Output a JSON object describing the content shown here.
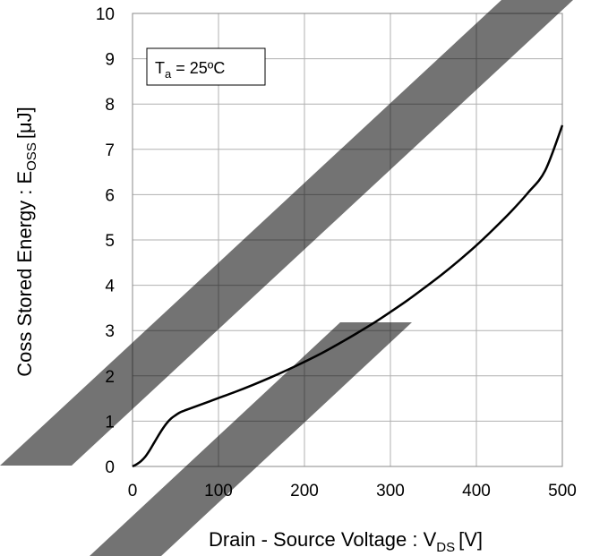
{
  "chart_data": {
    "type": "line",
    "xlabel": {
      "main": "Drain - Source Voltage : V",
      "sub": "DS",
      "unit": "[V]"
    },
    "ylabel": {
      "main": "Coss Stored Energy : E",
      "sub": "OSS",
      "unit": "[μJ]"
    },
    "xlim": [
      0,
      500
    ],
    "ylim": [
      0,
      10
    ],
    "xticks": [
      0,
      100,
      200,
      300,
      400,
      500
    ],
    "yticks": [
      0,
      1,
      2,
      3,
      4,
      5,
      6,
      7,
      8,
      9,
      10
    ],
    "grid": true,
    "annotation": {
      "main": "T",
      "sub": "a",
      "rest": " = 25ºC"
    },
    "series": [
      {
        "color": "#000000",
        "x": [
          0,
          5,
          10,
          15,
          20,
          25,
          30,
          35,
          40,
          45,
          50,
          55,
          60,
          70,
          80,
          90,
          100,
          120,
          140,
          160,
          180,
          200,
          220,
          240,
          260,
          280,
          300,
          320,
          340,
          360,
          380,
          400,
          420,
          440,
          460,
          480,
          500
        ],
        "y": [
          0,
          0.05,
          0.12,
          0.22,
          0.36,
          0.52,
          0.68,
          0.83,
          0.96,
          1.06,
          1.13,
          1.19,
          1.23,
          1.3,
          1.37,
          1.44,
          1.51,
          1.65,
          1.8,
          1.96,
          2.13,
          2.31,
          2.5,
          2.71,
          2.93,
          3.16,
          3.41,
          3.67,
          3.95,
          4.24,
          4.55,
          4.88,
          5.24,
          5.62,
          6.04,
          6.53,
          7.53
        ]
      }
    ]
  }
}
